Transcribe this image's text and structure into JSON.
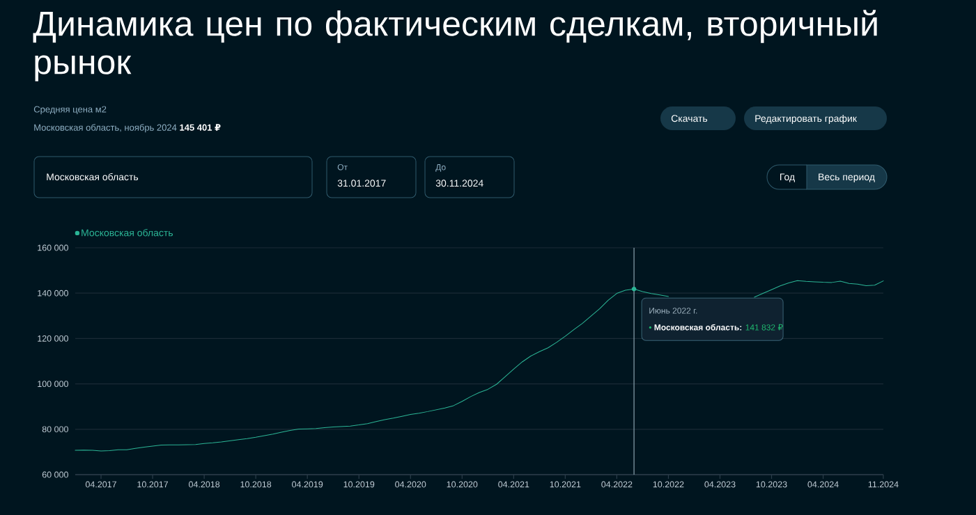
{
  "chart_data": {
    "type": "line",
    "title": "Динамика цен по фактическим сделкам, вторичный рынок",
    "subtitle": "Средняя цена м2",
    "annotations": [
      "Московская область, ноябрь 2024 **145 401 ₽**",
      "Скачать",
      "Редактировать график",
      "Московская область",
      "От",
      "31.01.2017",
      "До",
      "30.11.2024",
      "Год",
      "Весь период",
      {
        "text": "Июнь 2022 г.",
        "x": "2022-06",
        "y": 141832
      },
      "• **Московская область:** 141 832 ₽"
    ],
    "x": [
      "2017-01",
      "2017-02",
      "2017-03",
      "2017-04",
      "2017-05",
      "2017-06",
      "2017-07",
      "2017-08",
      "2017-09",
      "2017-10",
      "2017-11",
      "2017-12",
      "2018-01",
      "2018-02",
      "2018-03",
      "2018-04",
      "2018-05",
      "2018-06",
      "2018-07",
      "2018-08",
      "2018-09",
      "2018-10",
      "2018-11",
      "2018-12",
      "2019-01",
      "2019-02",
      "2019-03",
      "2019-04",
      "2019-05",
      "2019-06",
      "2019-07",
      "2019-08",
      "2019-09",
      "2019-10",
      "2019-11",
      "2019-12",
      "2020-01",
      "2020-02",
      "2020-03",
      "2020-04",
      "2020-05",
      "2020-06",
      "2020-07",
      "2020-08",
      "2020-09",
      "2020-10",
      "2020-11",
      "2020-12",
      "2021-01",
      "2021-02",
      "2021-03",
      "2021-04",
      "2021-05",
      "2021-06",
      "2021-07",
      "2021-08",
      "2021-09",
      "2021-10",
      "2021-11",
      "2021-12",
      "2022-01",
      "2022-02",
      "2022-03",
      "2022-04",
      "2022-05",
      "2022-06",
      "2022-07",
      "2022-08",
      "2022-09",
      "2022-10",
      "2022-11",
      "2022-12",
      "2023-01",
      "2023-02",
      "2023-03",
      "2023-04",
      "2023-05",
      "2023-06",
      "2023-07",
      "2023-08",
      "2023-09",
      "2023-10",
      "2023-11",
      "2023-12",
      "2024-01",
      "2024-02",
      "2024-03",
      "2024-04",
      "2024-05",
      "2024-06",
      "2024-07",
      "2024-08",
      "2024-09",
      "2024-10",
      "2024-11"
    ],
    "series": [
      {
        "name": "Московская область",
        "color": "#2bb596",
        "values": [
          70700,
          70800,
          70700,
          70400,
          70600,
          71000,
          71000,
          71600,
          72100,
          72600,
          73000,
          73100,
          73100,
          73200,
          73300,
          73700,
          74000,
          74400,
          74900,
          75400,
          75900,
          76500,
          77200,
          77900,
          78700,
          79500,
          80100,
          80200,
          80300,
          80700,
          81000,
          81200,
          81400,
          81900,
          82500,
          83400,
          84200,
          84900,
          85700,
          86500,
          87100,
          87800,
          88600,
          89400,
          90400,
          92300,
          94400,
          96200,
          97600,
          99800,
          103100,
          106500,
          109700,
          112300,
          114200,
          115900,
          118300,
          121000,
          123900,
          126700,
          129900,
          133100,
          136900,
          139900,
          141300,
          141832,
          140700,
          139800,
          139200,
          138500,
          null,
          null,
          null,
          null,
          null,
          null,
          null,
          null,
          null,
          138200,
          139900,
          141500,
          143200,
          144500,
          145500,
          145200,
          145000,
          144800,
          144700,
          145300,
          144300,
          144000,
          143300,
          143500,
          145401
        ]
      }
    ],
    "xlim": [
      "2017-01",
      "2024-11"
    ],
    "ylim": [
      60000,
      160000
    ],
    "xticks": [
      {
        "value": "2017-04",
        "label": "04.2017"
      },
      {
        "value": "2017-10",
        "label": "10.2017"
      },
      {
        "value": "2018-04",
        "label": "04.2018"
      },
      {
        "value": "2018-10",
        "label": "10.2018"
      },
      {
        "value": "2019-04",
        "label": "04.2019"
      },
      {
        "value": "2019-10",
        "label": "10.2019"
      },
      {
        "value": "2020-04",
        "label": "04.2020"
      },
      {
        "value": "2020-10",
        "label": "10.2020"
      },
      {
        "value": "2021-04",
        "label": "04.2021"
      },
      {
        "value": "2021-10",
        "label": "10.2021"
      },
      {
        "value": "2022-04",
        "label": "04.2022"
      },
      {
        "value": "2022-10",
        "label": "10.2022"
      },
      {
        "value": "2023-04",
        "label": "04.2023"
      },
      {
        "value": "2023-10",
        "label": "10.2023"
      },
      {
        "value": "2024-04",
        "label": "04.2024"
      },
      {
        "value": "2024-11",
        "label": "11.2024"
      }
    ],
    "yticks": [
      {
        "value": 60000,
        "label": "60 000"
      },
      {
        "value": 80000,
        "label": "80 000"
      },
      {
        "value": 100000,
        "label": "100 000"
      },
      {
        "value": 120000,
        "label": "120 000"
      },
      {
        "value": 140000,
        "label": "140 000"
      },
      {
        "value": 160000,
        "label": "160 000"
      }
    ],
    "ref_lines": [
      {
        "axis": "x",
        "value": "2022-06",
        "color": "#8aa2ae"
      }
    ],
    "grid": "y",
    "legend": "top left"
  }
}
